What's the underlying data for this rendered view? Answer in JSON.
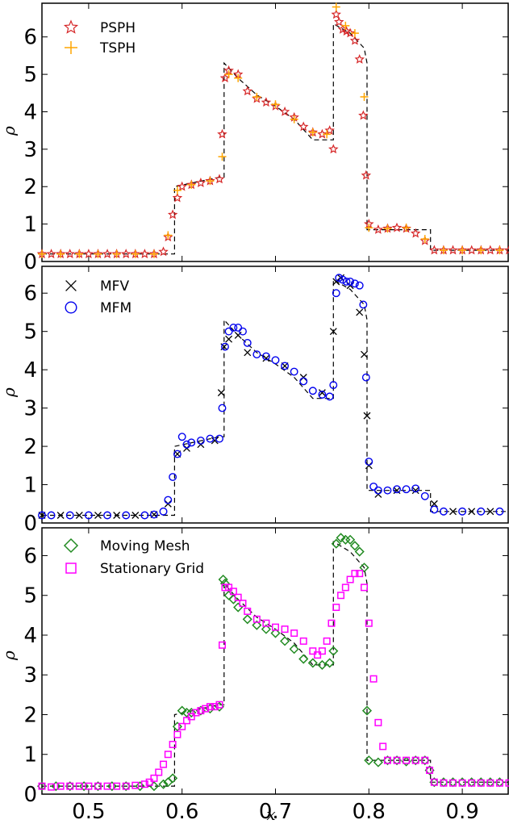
{
  "colors": {
    "PSPH": "#d62728",
    "TSPH": "#ffa500",
    "MFV": "#000000",
    "MFM": "#0000ee",
    "Moving Mesh": "#228b22",
    "Stationary Grid": "#ff00ff",
    "reference": "#000000"
  },
  "chart_data": [
    {
      "type": "scatter",
      "ylabel": "ρ",
      "xlabel": "",
      "xlim": [
        0.45,
        0.95
      ],
      "ylim": [
        0,
        6.9
      ],
      "yticks": [
        0,
        1,
        2,
        3,
        4,
        5,
        6
      ],
      "legend_position": "top-left",
      "reference": {
        "name": "",
        "style": "dashed",
        "x": [
          0.45,
          0.592,
          0.592,
          0.64,
          0.645,
          0.645,
          0.66,
          0.68,
          0.7,
          0.72,
          0.74,
          0.762,
          0.762,
          0.78,
          0.795,
          0.798,
          0.798,
          0.86,
          0.866,
          0.866,
          0.95
        ],
        "y": [
          0.2,
          0.2,
          2.0,
          2.25,
          2.25,
          5.3,
          4.9,
          4.45,
          4.15,
          3.8,
          3.25,
          3.25,
          6.35,
          6.1,
          5.7,
          5.3,
          0.85,
          0.85,
          0.85,
          0.3,
          0.3
        ]
      },
      "series": [
        {
          "name": "PSPH",
          "marker": "star",
          "x": [
            0.45,
            0.46,
            0.47,
            0.48,
            0.49,
            0.5,
            0.51,
            0.52,
            0.53,
            0.54,
            0.55,
            0.56,
            0.57,
            0.58,
            0.585,
            0.59,
            0.595,
            0.6,
            0.61,
            0.62,
            0.63,
            0.64,
            0.643,
            0.646,
            0.65,
            0.66,
            0.67,
            0.68,
            0.69,
            0.7,
            0.71,
            0.72,
            0.73,
            0.74,
            0.75,
            0.758,
            0.762,
            0.765,
            0.768,
            0.772,
            0.776,
            0.78,
            0.785,
            0.79,
            0.794,
            0.797,
            0.8,
            0.81,
            0.82,
            0.83,
            0.84,
            0.85,
            0.86,
            0.87,
            0.88,
            0.89,
            0.9,
            0.91,
            0.92,
            0.93,
            0.94,
            0.95
          ],
          "y": [
            0.2,
            0.2,
            0.2,
            0.2,
            0.2,
            0.2,
            0.2,
            0.2,
            0.2,
            0.2,
            0.2,
            0.2,
            0.2,
            0.26,
            0.65,
            1.25,
            1.7,
            2.0,
            2.05,
            2.1,
            2.15,
            2.2,
            3.4,
            4.9,
            5.1,
            5.0,
            4.55,
            4.35,
            4.25,
            4.15,
            4.0,
            3.85,
            3.6,
            3.45,
            3.4,
            3.5,
            3.0,
            6.6,
            6.4,
            6.2,
            6.15,
            6.1,
            5.9,
            5.4,
            3.9,
            2.3,
            1.0,
            0.85,
            0.88,
            0.9,
            0.88,
            0.75,
            0.55,
            0.3,
            0.3,
            0.3,
            0.3,
            0.3,
            0.3,
            0.3,
            0.3,
            0.3
          ]
        },
        {
          "name": "TSPH",
          "marker": "plus",
          "x": [
            0.45,
            0.47,
            0.49,
            0.51,
            0.53,
            0.55,
            0.57,
            0.585,
            0.595,
            0.61,
            0.63,
            0.643,
            0.65,
            0.66,
            0.68,
            0.7,
            0.72,
            0.74,
            0.755,
            0.765,
            0.775,
            0.785,
            0.795,
            0.8,
            0.82,
            0.84,
            0.86,
            0.88,
            0.9,
            0.92,
            0.94
          ],
          "y": [
            0.2,
            0.2,
            0.2,
            0.2,
            0.2,
            0.2,
            0.2,
            0.7,
            1.9,
            2.05,
            2.15,
            2.8,
            5.0,
            4.9,
            4.4,
            4.2,
            3.8,
            3.45,
            3.4,
            6.8,
            6.3,
            6.1,
            4.4,
            0.9,
            0.88,
            0.9,
            0.6,
            0.3,
            0.3,
            0.3,
            0.3
          ]
        }
      ]
    },
    {
      "type": "scatter",
      "ylabel": "ρ",
      "xlabel": "",
      "xlim": [
        0.45,
        0.95
      ],
      "ylim": [
        0,
        6.7
      ],
      "yticks": [
        0,
        1,
        2,
        3,
        4,
        5,
        6
      ],
      "legend_position": "top-left",
      "reference": {
        "name": "",
        "style": "dashed",
        "x": [
          0.45,
          0.592,
          0.592,
          0.64,
          0.645,
          0.645,
          0.66,
          0.68,
          0.7,
          0.72,
          0.74,
          0.762,
          0.762,
          0.78,
          0.795,
          0.798,
          0.798,
          0.86,
          0.866,
          0.866,
          0.95
        ],
        "y": [
          0.2,
          0.2,
          2.0,
          2.25,
          2.25,
          5.3,
          4.9,
          4.45,
          4.15,
          3.8,
          3.25,
          3.25,
          6.35,
          6.1,
          5.7,
          5.3,
          0.85,
          0.85,
          0.85,
          0.3,
          0.3
        ]
      },
      "series": [
        {
          "name": "MFV",
          "marker": "x",
          "x": [
            0.45,
            0.47,
            0.49,
            0.51,
            0.53,
            0.55,
            0.57,
            0.585,
            0.595,
            0.605,
            0.62,
            0.635,
            0.642,
            0.645,
            0.65,
            0.66,
            0.67,
            0.69,
            0.71,
            0.73,
            0.75,
            0.762,
            0.765,
            0.77,
            0.78,
            0.79,
            0.795,
            0.798,
            0.8,
            0.81,
            0.83,
            0.85,
            0.87,
            0.89,
            0.91,
            0.93
          ],
          "y": [
            0.2,
            0.2,
            0.2,
            0.2,
            0.2,
            0.2,
            0.22,
            0.5,
            1.8,
            1.95,
            2.05,
            2.15,
            3.4,
            4.6,
            4.8,
            4.9,
            4.45,
            4.3,
            4.1,
            3.8,
            3.4,
            5.0,
            6.3,
            6.4,
            6.2,
            5.5,
            4.4,
            2.8,
            1.5,
            0.75,
            0.85,
            0.85,
            0.5,
            0.3,
            0.3,
            0.3
          ]
        },
        {
          "name": "MFM",
          "marker": "circle",
          "x": [
            0.45,
            0.46,
            0.48,
            0.5,
            0.52,
            0.54,
            0.56,
            0.57,
            0.58,
            0.585,
            0.59,
            0.595,
            0.6,
            0.605,
            0.61,
            0.62,
            0.63,
            0.64,
            0.643,
            0.646,
            0.65,
            0.655,
            0.66,
            0.665,
            0.67,
            0.68,
            0.69,
            0.7,
            0.71,
            0.72,
            0.73,
            0.74,
            0.75,
            0.758,
            0.762,
            0.765,
            0.768,
            0.772,
            0.776,
            0.78,
            0.785,
            0.79,
            0.794,
            0.797,
            0.8,
            0.805,
            0.81,
            0.82,
            0.83,
            0.84,
            0.85,
            0.86,
            0.87,
            0.88,
            0.9,
            0.92,
            0.94
          ],
          "y": [
            0.2,
            0.2,
            0.2,
            0.2,
            0.2,
            0.2,
            0.2,
            0.22,
            0.3,
            0.6,
            1.2,
            1.8,
            2.25,
            2.05,
            2.1,
            2.15,
            2.2,
            2.2,
            3.0,
            4.6,
            5.0,
            5.1,
            5.1,
            5.0,
            4.7,
            4.4,
            4.35,
            4.25,
            4.1,
            3.95,
            3.7,
            3.45,
            3.35,
            3.3,
            3.6,
            6.0,
            6.4,
            6.35,
            6.3,
            6.3,
            6.25,
            6.2,
            5.7,
            3.8,
            1.6,
            0.95,
            0.85,
            0.85,
            0.88,
            0.88,
            0.9,
            0.7,
            0.35,
            0.3,
            0.3,
            0.3,
            0.3
          ]
        }
      ]
    },
    {
      "type": "scatter",
      "ylabel": "ρ",
      "xlabel": "x",
      "xlim": [
        0.45,
        0.95
      ],
      "ylim": [
        0,
        6.7
      ],
      "yticks": [
        0,
        1,
        2,
        3,
        4,
        5,
        6
      ],
      "xticks": [
        "0.5",
        "0.6",
        "0.7",
        "0.8",
        "0.9"
      ],
      "xtick_values": [
        0.5,
        0.6,
        0.7,
        0.8,
        0.9
      ],
      "legend_position": "top-left",
      "reference": {
        "name": "",
        "style": "dashed",
        "x": [
          0.45,
          0.592,
          0.592,
          0.64,
          0.645,
          0.645,
          0.66,
          0.68,
          0.7,
          0.72,
          0.74,
          0.762,
          0.762,
          0.78,
          0.795,
          0.798,
          0.798,
          0.86,
          0.866,
          0.866,
          0.95
        ],
        "y": [
          0.2,
          0.2,
          2.0,
          2.25,
          2.25,
          5.3,
          4.9,
          4.45,
          4.15,
          3.8,
          3.25,
          3.25,
          6.35,
          6.1,
          5.7,
          5.3,
          0.85,
          0.85,
          0.85,
          0.3,
          0.3
        ]
      },
      "series": [
        {
          "name": "Moving Mesh",
          "marker": "diamond",
          "x": [
            0.45,
            0.465,
            0.48,
            0.495,
            0.51,
            0.525,
            0.54,
            0.555,
            0.57,
            0.58,
            0.585,
            0.59,
            0.595,
            0.6,
            0.605,
            0.61,
            0.62,
            0.63,
            0.64,
            0.644,
            0.646,
            0.65,
            0.655,
            0.66,
            0.67,
            0.68,
            0.69,
            0.7,
            0.71,
            0.72,
            0.73,
            0.74,
            0.75,
            0.758,
            0.762,
            0.765,
            0.77,
            0.775,
            0.78,
            0.785,
            0.79,
            0.795,
            0.798,
            0.8,
            0.81,
            0.82,
            0.83,
            0.84,
            0.85,
            0.86,
            0.865,
            0.87,
            0.88,
            0.89,
            0.9,
            0.91,
            0.92,
            0.93,
            0.94
          ],
          "y": [
            0.2,
            0.2,
            0.2,
            0.2,
            0.2,
            0.2,
            0.2,
            0.2,
            0.2,
            0.25,
            0.3,
            0.4,
            1.7,
            2.1,
            2.05,
            2.05,
            2.1,
            2.15,
            2.2,
            5.4,
            5.3,
            5.0,
            4.9,
            4.7,
            4.4,
            4.25,
            4.15,
            4.05,
            3.85,
            3.65,
            3.4,
            3.3,
            3.25,
            3.3,
            3.6,
            6.3,
            6.45,
            6.4,
            6.4,
            6.25,
            6.1,
            5.7,
            2.1,
            0.85,
            0.8,
            0.85,
            0.85,
            0.82,
            0.85,
            0.85,
            0.6,
            0.3,
            0.3,
            0.3,
            0.3,
            0.3,
            0.3,
            0.3,
            0.3
          ]
        },
        {
          "name": "Stationary Grid",
          "marker": "square",
          "x": [
            0.45,
            0.46,
            0.47,
            0.48,
            0.49,
            0.5,
            0.51,
            0.52,
            0.53,
            0.54,
            0.55,
            0.56,
            0.565,
            0.57,
            0.575,
            0.58,
            0.585,
            0.59,
            0.595,
            0.6,
            0.605,
            0.61,
            0.615,
            0.62,
            0.625,
            0.63,
            0.635,
            0.64,
            0.643,
            0.646,
            0.65,
            0.655,
            0.66,
            0.665,
            0.67,
            0.68,
            0.69,
            0.7,
            0.71,
            0.72,
            0.73,
            0.74,
            0.745,
            0.75,
            0.755,
            0.76,
            0.765,
            0.77,
            0.775,
            0.78,
            0.785,
            0.79,
            0.795,
            0.8,
            0.805,
            0.81,
            0.815,
            0.82,
            0.83,
            0.84,
            0.85,
            0.86,
            0.865,
            0.87,
            0.88,
            0.89,
            0.9,
            0.91,
            0.92,
            0.93,
            0.94,
            0.95
          ],
          "y": [
            0.2,
            0.18,
            0.2,
            0.2,
            0.2,
            0.2,
            0.2,
            0.2,
            0.2,
            0.2,
            0.22,
            0.25,
            0.3,
            0.4,
            0.55,
            0.75,
            1.0,
            1.25,
            1.5,
            1.7,
            1.85,
            1.95,
            2.05,
            2.1,
            2.15,
            2.2,
            2.2,
            2.25,
            3.75,
            5.2,
            5.2,
            5.1,
            4.95,
            4.8,
            4.6,
            4.4,
            4.3,
            4.2,
            4.15,
            4.05,
            3.85,
            3.6,
            3.5,
            3.6,
            3.85,
            4.3,
            4.7,
            5.0,
            5.2,
            5.4,
            5.55,
            5.55,
            5.2,
            4.3,
            2.9,
            1.8,
            1.2,
            0.85,
            0.85,
            0.85,
            0.85,
            0.85,
            0.6,
            0.3,
            0.28,
            0.28,
            0.28,
            0.28,
            0.28,
            0.28,
            0.28,
            0.28
          ]
        }
      ]
    }
  ]
}
